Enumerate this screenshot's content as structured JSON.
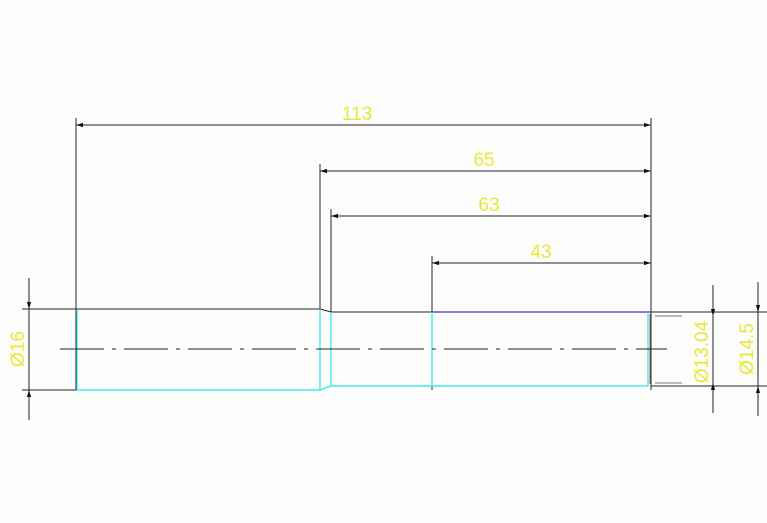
{
  "drawing": {
    "dimensions": {
      "overall_length": "113",
      "length_65": "65",
      "length_63": "63",
      "length_43": "43",
      "dia_large": "Ø16",
      "dia_small": "Ø13.04",
      "dia_mid": "Ø14.5"
    },
    "colors": {
      "dimension_text": "#e8e83a",
      "outline": "#22e6ee",
      "dimension_lines": "#222222",
      "highlight_edge": "#4433cc",
      "background": "#fdfefb"
    }
  }
}
